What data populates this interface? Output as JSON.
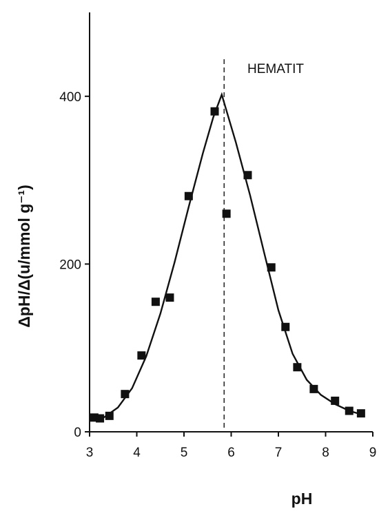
{
  "chart_data": {
    "type": "scatter",
    "xlabel": "pH",
    "ylabel": "ΔpH/Δ(u/mmol g⁻¹)",
    "xlim": [
      3,
      9
    ],
    "ylim": [
      0,
      500
    ],
    "xticks": [
      "3",
      "4",
      "5",
      "6",
      "7",
      "8",
      "9"
    ],
    "yticks": [
      "0",
      "200",
      "400"
    ],
    "annotation": "HEMATIT",
    "reference_line_x": 5.85,
    "points": [
      {
        "x": 3.1,
        "y": 17
      },
      {
        "x": 3.22,
        "y": 16
      },
      {
        "x": 3.42,
        "y": 19
      },
      {
        "x": 3.75,
        "y": 45
      },
      {
        "x": 4.1,
        "y": 91
      },
      {
        "x": 4.4,
        "y": 155
      },
      {
        "x": 4.7,
        "y": 160
      },
      {
        "x": 5.1,
        "y": 281
      },
      {
        "x": 5.65,
        "y": 382
      },
      {
        "x": 5.9,
        "y": 260
      },
      {
        "x": 6.35,
        "y": 306
      },
      {
        "x": 6.85,
        "y": 196
      },
      {
        "x": 7.15,
        "y": 125
      },
      {
        "x": 7.4,
        "y": 77
      },
      {
        "x": 7.75,
        "y": 51
      },
      {
        "x": 8.2,
        "y": 37
      },
      {
        "x": 8.5,
        "y": 25
      },
      {
        "x": 8.75,
        "y": 22
      }
    ],
    "fit_curve": [
      {
        "x": 3.0,
        "y": 13
      },
      {
        "x": 3.3,
        "y": 17
      },
      {
        "x": 3.6,
        "y": 29
      },
      {
        "x": 3.9,
        "y": 52
      },
      {
        "x": 4.2,
        "y": 90
      },
      {
        "x": 4.5,
        "y": 141
      },
      {
        "x": 4.8,
        "y": 202
      },
      {
        "x": 5.1,
        "y": 268
      },
      {
        "x": 5.4,
        "y": 332
      },
      {
        "x": 5.62,
        "y": 375
      },
      {
        "x": 5.8,
        "y": 402
      },
      {
        "x": 6.1,
        "y": 345
      },
      {
        "x": 6.4,
        "y": 282
      },
      {
        "x": 6.7,
        "y": 213
      },
      {
        "x": 7.0,
        "y": 145
      },
      {
        "x": 7.3,
        "y": 93
      },
      {
        "x": 7.6,
        "y": 62
      },
      {
        "x": 7.9,
        "y": 44
      },
      {
        "x": 8.2,
        "y": 33
      },
      {
        "x": 8.5,
        "y": 25
      },
      {
        "x": 8.8,
        "y": 20
      }
    ],
    "grid": false
  }
}
